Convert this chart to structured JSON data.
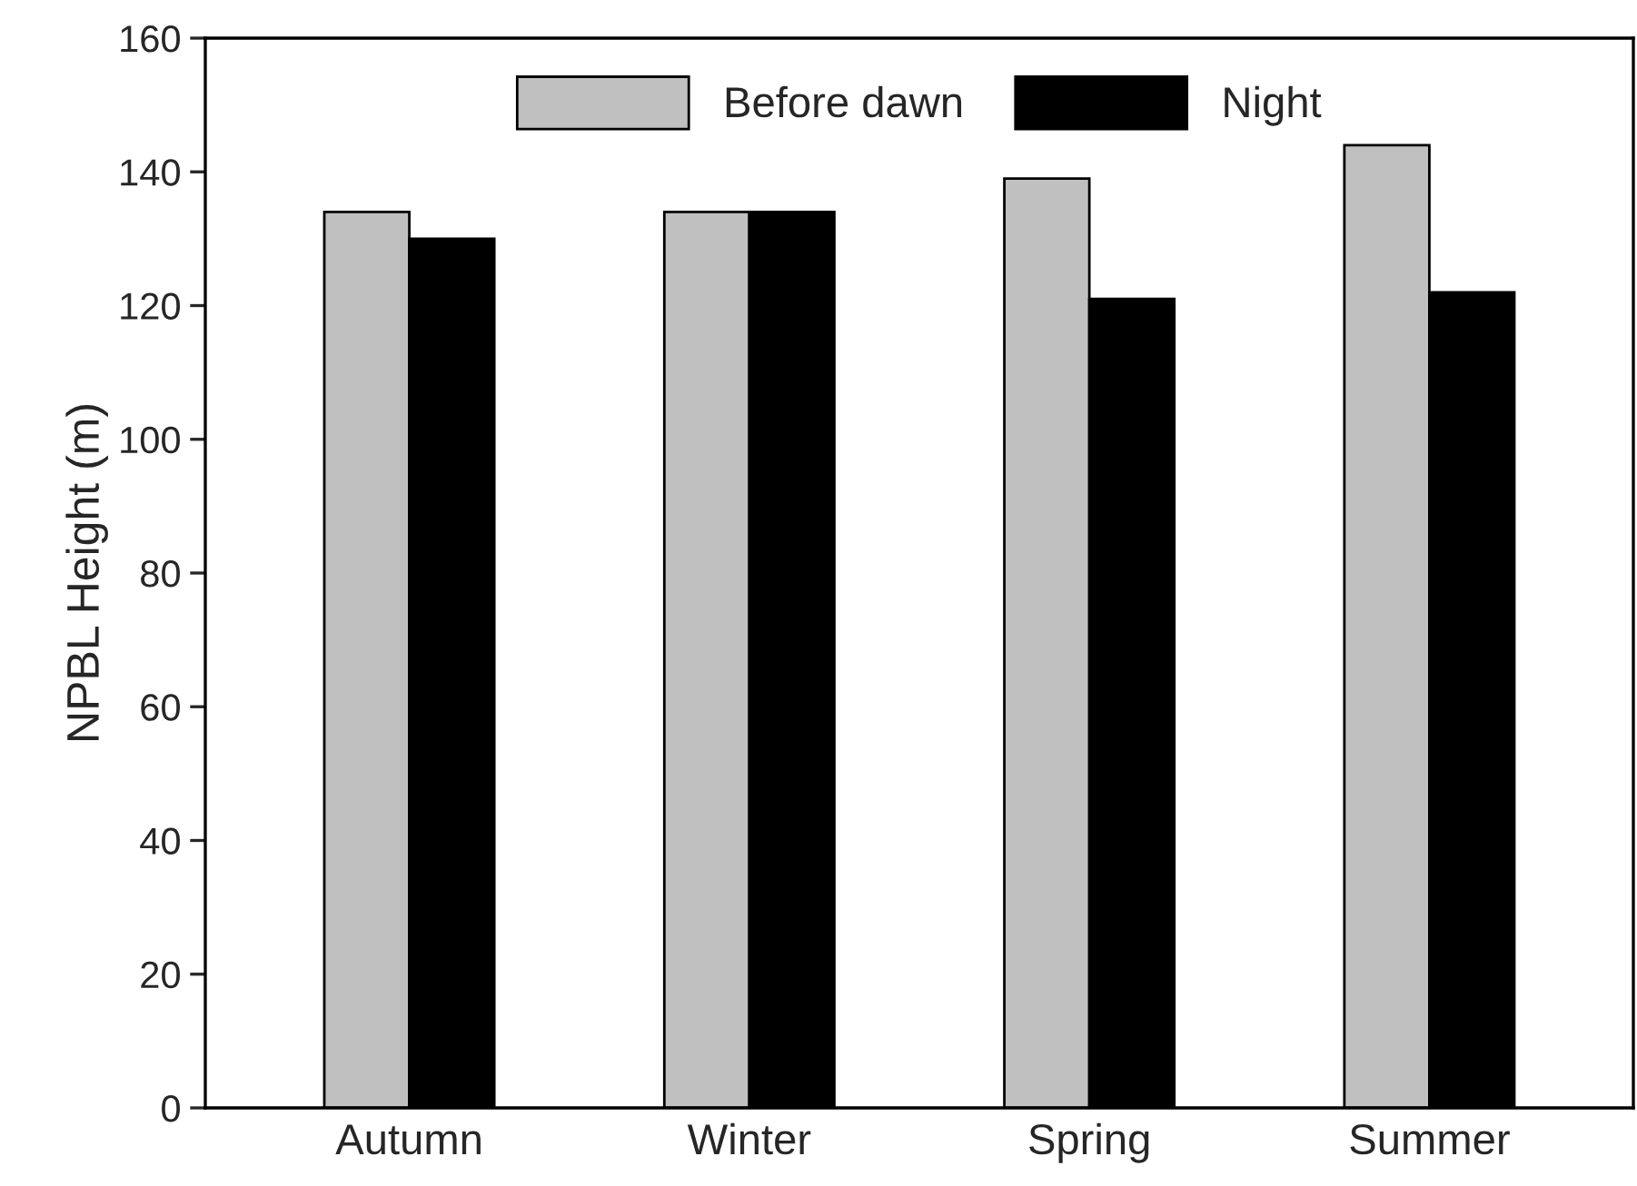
{
  "chart_data": {
    "type": "bar",
    "ylabel": "NPBL Height (m)",
    "categories": [
      "Autumn",
      "Winter",
      "Spring",
      "Summer"
    ],
    "series": [
      {
        "name": "Before dawn",
        "color": "#c0c0c0",
        "values": [
          134,
          134,
          139,
          144
        ]
      },
      {
        "name": "Night",
        "color": "#000000",
        "values": [
          130,
          134,
          121,
          122
        ]
      }
    ],
    "ylim": [
      0,
      160
    ],
    "yticks": [
      0,
      20,
      40,
      60,
      80,
      100,
      120,
      140,
      160
    ],
    "grid": false,
    "legend": "top"
  }
}
